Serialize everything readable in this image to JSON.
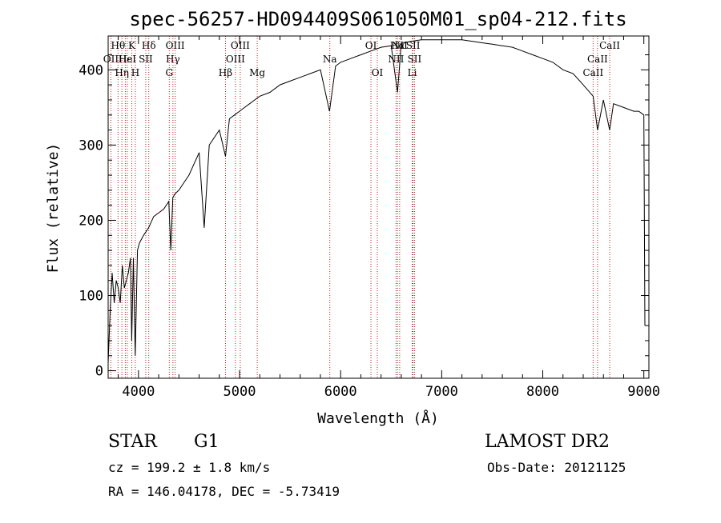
{
  "chart_data": {
    "type": "line",
    "title": "spec-56257-HD094409S061050M01_sp04-212.fits",
    "xlabel": "Wavelength (Å)",
    "ylabel": "Flux (relative)",
    "xlim": [
      3700,
      9050
    ],
    "ylim": [
      -10,
      445
    ],
    "x_ticks": [
      4000,
      5000,
      6000,
      7000,
      8000,
      9000
    ],
    "x_tick_labels": [
      "4000",
      "5000",
      "6000",
      "7000",
      "8000",
      "9000"
    ],
    "y_ticks": [
      0,
      100,
      200,
      300,
      400
    ],
    "y_tick_labels": [
      "0",
      "100",
      "200",
      "300",
      "400"
    ],
    "grid": false,
    "line_color": "#000000",
    "marker_line_color": "#b22222",
    "series": [
      {
        "x": [
          3700,
          3720,
          3740,
          3760,
          3780,
          3800,
          3820,
          3840,
          3860,
          3880,
          3900,
          3920,
          3933,
          3950,
          3968,
          3990,
          4010,
          4050,
          4100,
          4150,
          4200,
          4250,
          4300,
          4320,
          4340,
          4360,
          4400,
          4450,
          4500,
          4550,
          4600,
          4650,
          4700,
          4750,
          4800,
          4861,
          4900,
          4950,
          5000,
          5050,
          5100,
          5150,
          5200,
          5300,
          5400,
          5500,
          5600,
          5700,
          5800,
          5890,
          5950,
          6000,
          6100,
          6200,
          6300,
          6400,
          6500,
          6563,
          6600,
          6700,
          6800,
          6900,
          7000,
          7100,
          7200,
          7300,
          7400,
          7500,
          7600,
          7700,
          7800,
          7900,
          8000,
          8100,
          8200,
          8300,
          8400,
          8498,
          8542,
          8600,
          8662,
          8700,
          8800,
          8900,
          8950,
          9000,
          9010
        ],
        "y": [
          10,
          80,
          130,
          90,
          120,
          110,
          90,
          140,
          110,
          120,
          130,
          150,
          40,
          150,
          20,
          160,
          170,
          180,
          190,
          205,
          210,
          215,
          225,
          160,
          230,
          235,
          240,
          250,
          260,
          275,
          290,
          190,
          300,
          310,
          320,
          285,
          335,
          340,
          345,
          350,
          355,
          360,
          365,
          370,
          380,
          385,
          390,
          395,
          400,
          345,
          405,
          410,
          415,
          420,
          425,
          430,
          432,
          370,
          435,
          438,
          440,
          440,
          440,
          440,
          440,
          438,
          436,
          434,
          432,
          430,
          425,
          420,
          415,
          410,
          400,
          395,
          380,
          365,
          320,
          360,
          320,
          355,
          350,
          345,
          345,
          340,
          60
        ]
      }
    ]
  },
  "line_labels": [
    {
      "text": "Hθ",
      "lambda": 3798,
      "row": 1
    },
    {
      "text": "OII",
      "lambda": 3727,
      "row": 2
    },
    {
      "text": "Hη",
      "lambda": 3836,
      "row": 3
    },
    {
      "text": "Hε",
      "lambda": 3870,
      "row": 2
    },
    {
      "text": "HeI",
      "lambda": 3889,
      "row": 2
    },
    {
      "text": "K",
      "lambda": 3934,
      "row": 1
    },
    {
      "text": "H",
      "lambda": 3969,
      "row": 3
    },
    {
      "text": "SII",
      "lambda": 4072,
      "row": 2
    },
    {
      "text": "Hδ",
      "lambda": 4102,
      "row": 1
    },
    {
      "text": "OIII",
      "lambda": 4363,
      "row": 1
    },
    {
      "text": "Hγ",
      "lambda": 4341,
      "row": 2
    },
    {
      "text": "G",
      "lambda": 4305,
      "row": 3
    },
    {
      "text": "OIII",
      "lambda": 5007,
      "row": 1
    },
    {
      "text": "OIII",
      "lambda": 4959,
      "row": 2
    },
    {
      "text": "Hβ",
      "lambda": 4861,
      "row": 3
    },
    {
      "text": "Mg",
      "lambda": 5175,
      "row": 3
    },
    {
      "text": "Na",
      "lambda": 5893,
      "row": 2
    },
    {
      "text": "OI",
      "lambda": 6300,
      "row": 1
    },
    {
      "text": "OI",
      "lambda": 6363,
      "row": 3
    },
    {
      "text": "Hα",
      "lambda": 6563,
      "row": 1
    },
    {
      "text": "NII",
      "lambda": 6548,
      "row": 2
    },
    {
      "text": "NII",
      "lambda": 6584,
      "row": 1
    },
    {
      "text": "SII",
      "lambda": 6717,
      "row": 1
    },
    {
      "text": "SII",
      "lambda": 6731,
      "row": 2
    },
    {
      "text": "Li",
      "lambda": 6708,
      "row": 3
    },
    {
      "text": "CaII",
      "lambda": 8662,
      "row": 1
    },
    {
      "text": "CaII",
      "lambda": 8542,
      "row": 2
    },
    {
      "text": "CaII",
      "lambda": 8498,
      "row": 3
    }
  ],
  "marker_lambdas": [
    3727,
    3798,
    3836,
    3870,
    3889,
    3934,
    3969,
    4072,
    4102,
    4305,
    4341,
    4363,
    4861,
    4959,
    5007,
    5175,
    5893,
    6300,
    6363,
    6548,
    6563,
    6584,
    6708,
    6717,
    6731,
    8498,
    8542,
    8662
  ],
  "info": {
    "object_class": "STAR",
    "subclass": "G1",
    "survey": "LAMOST DR2",
    "redshift": "cz = 199.2 ± 1.8 km/s",
    "obs_date": "Obs-Date: 20121125",
    "coords": "RA = 146.04178, DEC =  -5.73419"
  }
}
